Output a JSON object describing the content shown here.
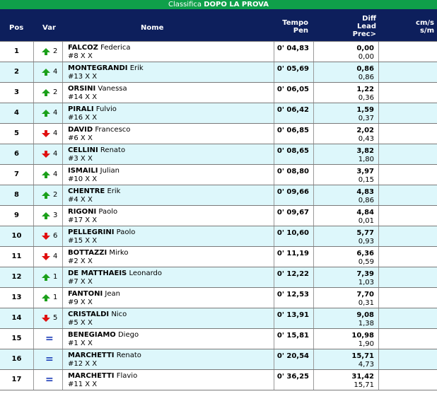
{
  "title": {
    "part1": "Classifica ",
    "part2": "DOPO LA PROVA"
  },
  "columns": {
    "pos": "Pos",
    "var": "Var",
    "nome": "Nome",
    "tempo_line1": "Tempo",
    "tempo_line2": "Pen",
    "diff_line1": "Diff",
    "diff_line2": "Lead",
    "diff_line3": "Prec>",
    "cms_line1": "cm/s",
    "cms_line2": "s/m"
  },
  "colors": {
    "up": "#1aa01a",
    "down": "#e01010",
    "equal": "#1e3fb8",
    "header": "#0d1f5c",
    "title": "#0fa04a"
  },
  "rows": [
    {
      "pos": "1",
      "var_dir": "up",
      "var": "2",
      "surname": "FALCOZ",
      "firstname": "Federica",
      "bib": "#8 X X",
      "tempo": "0' 04,83",
      "lead": "0,00",
      "prec": "0,00"
    },
    {
      "pos": "2",
      "var_dir": "up",
      "var": "4",
      "surname": "MONTEGRANDI",
      "firstname": "Erik",
      "bib": "#13 X X",
      "tempo": "0' 05,69",
      "lead": "0,86",
      "prec": "0,86"
    },
    {
      "pos": "3",
      "var_dir": "up",
      "var": "2",
      "surname": "ORSINI",
      "firstname": "Vanessa",
      "bib": "#14 X X",
      "tempo": "0' 06,05",
      "lead": "1,22",
      "prec": "0,36"
    },
    {
      "pos": "4",
      "var_dir": "up",
      "var": "4",
      "surname": "PIRALI",
      "firstname": "Fulvio",
      "bib": "#16 X X",
      "tempo": "0' 06,42",
      "lead": "1,59",
      "prec": "0,37"
    },
    {
      "pos": "5",
      "var_dir": "down",
      "var": "4",
      "surname": "DAVID",
      "firstname": "Francesco",
      "bib": "#6 X X",
      "tempo": "0' 06,85",
      "lead": "2,02",
      "prec": "0,43"
    },
    {
      "pos": "6",
      "var_dir": "down",
      "var": "4",
      "surname": "CELLINI",
      "firstname": "Renato",
      "bib": "#3 X X",
      "tempo": "0' 08,65",
      "lead": "3,82",
      "prec": "1,80"
    },
    {
      "pos": "7",
      "var_dir": "up",
      "var": "4",
      "surname": "ISMAILI",
      "firstname": "Julian",
      "bib": "#10 X X",
      "tempo": "0' 08,80",
      "lead": "3,97",
      "prec": "0,15"
    },
    {
      "pos": "8",
      "var_dir": "up",
      "var": "2",
      "surname": "CHENTRE",
      "firstname": "Erik",
      "bib": "#4 X X",
      "tempo": "0' 09,66",
      "lead": "4,83",
      "prec": "0,86"
    },
    {
      "pos": "9",
      "var_dir": "up",
      "var": "3",
      "surname": "RIGONI",
      "firstname": "Paolo",
      "bib": "#17 X X",
      "tempo": "0' 09,67",
      "lead": "4,84",
      "prec": "0,01"
    },
    {
      "pos": "10",
      "var_dir": "down",
      "var": "6",
      "surname": "PELLEGRINI",
      "firstname": "Paolo",
      "bib": "#15 X X",
      "tempo": "0' 10,60",
      "lead": "5,77",
      "prec": "0,93"
    },
    {
      "pos": "11",
      "var_dir": "down",
      "var": "4",
      "surname": "BOTTAZZI",
      "firstname": "Mirko",
      "bib": "#2 X X",
      "tempo": "0' 11,19",
      "lead": "6,36",
      "prec": "0,59"
    },
    {
      "pos": "12",
      "var_dir": "up",
      "var": "1",
      "surname": "DE MATTHAEIS",
      "firstname": "Leonardo",
      "bib": "#7 X X",
      "tempo": "0' 12,22",
      "lead": "7,39",
      "prec": "1,03"
    },
    {
      "pos": "13",
      "var_dir": "up",
      "var": "1",
      "surname": "FANTONI",
      "firstname": "Jean",
      "bib": "#9 X X",
      "tempo": "0' 12,53",
      "lead": "7,70",
      "prec": "0,31"
    },
    {
      "pos": "14",
      "var_dir": "down",
      "var": "5",
      "surname": "CRISTALDI",
      "firstname": "Nico",
      "bib": "#5 X X",
      "tempo": "0' 13,91",
      "lead": "9,08",
      "prec": "1,38"
    },
    {
      "pos": "15",
      "var_dir": "equal",
      "var": "=",
      "surname": "BENEGIAMO",
      "firstname": "Diego",
      "bib": "#1 X X",
      "tempo": "0' 15,81",
      "lead": "10,98",
      "prec": "1,90"
    },
    {
      "pos": "16",
      "var_dir": "equal",
      "var": "=",
      "surname": "MARCHETTI",
      "firstname": "Renato",
      "bib": "#12 X X",
      "tempo": "0' 20,54",
      "lead": "15,71",
      "prec": "4,73"
    },
    {
      "pos": "17",
      "var_dir": "equal",
      "var": "=",
      "surname": "MARCHETTI",
      "firstname": "Flavio",
      "bib": "#11 X X",
      "tempo": "0' 36,25",
      "lead": "31,42",
      "prec": "15,71"
    }
  ]
}
